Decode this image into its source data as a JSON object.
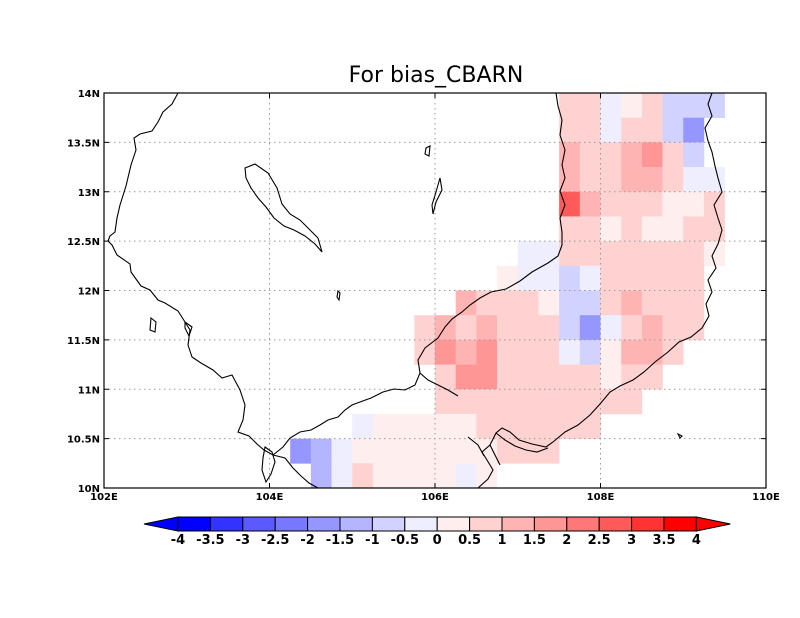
{
  "map": {
    "title": "For bias_CBARN",
    "lon_range": [
      102,
      110
    ],
    "lat_range": [
      10,
      14
    ],
    "x_ticks": [
      {
        "value": 102,
        "label": "102E"
      },
      {
        "value": 104,
        "label": "104E"
      },
      {
        "value": 106,
        "label": "106E"
      },
      {
        "value": 108,
        "label": "108E"
      },
      {
        "value": 110,
        "label": "110E"
      }
    ],
    "y_ticks": [
      {
        "value": 10,
        "label": "10N"
      },
      {
        "value": 10.5,
        "label": "10.5N"
      },
      {
        "value": 11,
        "label": "11N"
      },
      {
        "value": 11.5,
        "label": "11.5N"
      },
      {
        "value": 12,
        "label": "12N"
      },
      {
        "value": 12.5,
        "label": "12.5N"
      },
      {
        "value": 13,
        "label": "13N"
      },
      {
        "value": 13.5,
        "label": "13.5N"
      },
      {
        "value": 14,
        "label": "14N"
      }
    ],
    "grid": "dotted at tick values",
    "projection": "lat-lon",
    "cell_size_deg": 0.25
  },
  "colorbar": {
    "orientation": "horizontal",
    "boundaries": [
      "-4",
      "-3.5",
      "-3",
      "-2.5",
      "-2",
      "-1.5",
      "-1",
      "-0.5",
      "0",
      "0.5",
      "1",
      "1.5",
      "2",
      "2.5",
      "3",
      "3.5",
      "4"
    ],
    "colors": [
      "#0000ff",
      "#3333ff",
      "#5a5aff",
      "#7878ff",
      "#9696ff",
      "#b4b4ff",
      "#d2d2ff",
      "#eeeeff",
      "#ffeeee",
      "#ffd2d2",
      "#ffb4b4",
      "#ff9696",
      "#ff7878",
      "#ff5a5a",
      "#ff3333",
      "#ff0000"
    ],
    "extend_low_color": "#0000ff",
    "extend_high_color": "#ff0000"
  },
  "chart_data": {
    "type": "heatmap",
    "title": "For bias_CBARN",
    "xlabel": "",
    "ylabel": "",
    "xlim": [
      102,
      110
    ],
    "ylim": [
      10,
      14
    ],
    "value_note": "approximate bias values per 0.25-degree grid cell (lon, lat are cell lower-left corners)",
    "cells": [
      {
        "lon": 107.5,
        "lat": 13.75,
        "v": 0.7
      },
      {
        "lon": 107.75,
        "lat": 13.75,
        "v": 0.7
      },
      {
        "lon": 108.0,
        "lat": 13.75,
        "v": -0.3
      },
      {
        "lon": 108.25,
        "lat": 13.75,
        "v": 0.3
      },
      {
        "lon": 108.5,
        "lat": 13.75,
        "v": 0.8
      },
      {
        "lon": 108.75,
        "lat": 13.75,
        "v": -0.7
      },
      {
        "lon": 109.0,
        "lat": 13.75,
        "v": -0.7
      },
      {
        "lon": 109.25,
        "lat": 13.75,
        "v": -0.7
      },
      {
        "lon": 107.5,
        "lat": 13.5,
        "v": 0.7
      },
      {
        "lon": 107.75,
        "lat": 13.5,
        "v": 0.7
      },
      {
        "lon": 108.0,
        "lat": 13.5,
        "v": -0.3
      },
      {
        "lon": 108.25,
        "lat": 13.5,
        "v": 0.8
      },
      {
        "lon": 108.5,
        "lat": 13.5,
        "v": 0.8
      },
      {
        "lon": 108.75,
        "lat": 13.5,
        "v": -0.7
      },
      {
        "lon": 109.0,
        "lat": 13.5,
        "v": -1.7
      },
      {
        "lon": 107.5,
        "lat": 13.25,
        "v": 1.3
      },
      {
        "lon": 107.75,
        "lat": 13.25,
        "v": 0.8
      },
      {
        "lon": 108.0,
        "lat": 13.25,
        "v": 0.8
      },
      {
        "lon": 108.25,
        "lat": 13.25,
        "v": 1.3
      },
      {
        "lon": 108.5,
        "lat": 13.25,
        "v": 1.8
      },
      {
        "lon": 108.75,
        "lat": 13.25,
        "v": 0.8
      },
      {
        "lon": 109.0,
        "lat": 13.25,
        "v": -0.7
      },
      {
        "lon": 107.5,
        "lat": 13.0,
        "v": 1.3
      },
      {
        "lon": 107.75,
        "lat": 13.0,
        "v": 0.8
      },
      {
        "lon": 108.0,
        "lat": 13.0,
        "v": 0.8
      },
      {
        "lon": 108.25,
        "lat": 13.0,
        "v": 1.3
      },
      {
        "lon": 108.5,
        "lat": 13.0,
        "v": 1.3
      },
      {
        "lon": 108.75,
        "lat": 13.0,
        "v": 0.8
      },
      {
        "lon": 109.0,
        "lat": 13.0,
        "v": -0.3
      },
      {
        "lon": 109.25,
        "lat": 13.0,
        "v": -0.3
      },
      {
        "lon": 107.5,
        "lat": 12.75,
        "v": 2.8
      },
      {
        "lon": 107.75,
        "lat": 12.75,
        "v": 1.3
      },
      {
        "lon": 108.0,
        "lat": 12.75,
        "v": 0.8
      },
      {
        "lon": 108.25,
        "lat": 12.75,
        "v": 0.8
      },
      {
        "lon": 108.5,
        "lat": 12.75,
        "v": 0.8
      },
      {
        "lon": 108.75,
        "lat": 12.75,
        "v": 0.3
      },
      {
        "lon": 109.0,
        "lat": 12.75,
        "v": 0.3
      },
      {
        "lon": 109.25,
        "lat": 12.75,
        "v": 0.7
      },
      {
        "lon": 107.5,
        "lat": 12.5,
        "v": 0.8
      },
      {
        "lon": 107.75,
        "lat": 12.5,
        "v": 0.8
      },
      {
        "lon": 108.0,
        "lat": 12.5,
        "v": 0.3
      },
      {
        "lon": 108.25,
        "lat": 12.5,
        "v": 0.8
      },
      {
        "lon": 108.5,
        "lat": 12.5,
        "v": 0.3
      },
      {
        "lon": 108.75,
        "lat": 12.5,
        "v": 0.3
      },
      {
        "lon": 109.0,
        "lat": 12.5,
        "v": 0.7
      },
      {
        "lon": 109.25,
        "lat": 12.5,
        "v": 0.7
      },
      {
        "lon": 107.0,
        "lat": 12.25,
        "v": -0.3
      },
      {
        "lon": 107.25,
        "lat": 12.25,
        "v": -0.3
      },
      {
        "lon": 107.5,
        "lat": 12.25,
        "v": 0.7
      },
      {
        "lon": 107.75,
        "lat": 12.25,
        "v": 0.7
      },
      {
        "lon": 108.0,
        "lat": 12.25,
        "v": 0.7
      },
      {
        "lon": 108.25,
        "lat": 12.25,
        "v": 0.7
      },
      {
        "lon": 108.5,
        "lat": 12.25,
        "v": 0.7
      },
      {
        "lon": 108.75,
        "lat": 12.25,
        "v": 0.7
      },
      {
        "lon": 109.0,
        "lat": 12.25,
        "v": 0.7
      },
      {
        "lon": 109.25,
        "lat": 12.25,
        "v": 0.3
      },
      {
        "lon": 106.75,
        "lat": 12.0,
        "v": 0.3
      },
      {
        "lon": 107.0,
        "lat": 12.0,
        "v": -0.3
      },
      {
        "lon": 107.25,
        "lat": 12.0,
        "v": -0.3
      },
      {
        "lon": 107.5,
        "lat": 12.0,
        "v": -0.7
      },
      {
        "lon": 107.75,
        "lat": 12.0,
        "v": -0.3
      },
      {
        "lon": 108.0,
        "lat": 12.0,
        "v": 0.7
      },
      {
        "lon": 108.25,
        "lat": 12.0,
        "v": 0.7
      },
      {
        "lon": 108.5,
        "lat": 12.0,
        "v": 0.7
      },
      {
        "lon": 108.75,
        "lat": 12.0,
        "v": 0.7
      },
      {
        "lon": 109.0,
        "lat": 12.0,
        "v": 0.7
      },
      {
        "lon": 106.25,
        "lat": 11.75,
        "v": 1.3
      },
      {
        "lon": 106.5,
        "lat": 11.75,
        "v": 0.8
      },
      {
        "lon": 106.75,
        "lat": 11.75,
        "v": 0.8
      },
      {
        "lon": 107.0,
        "lat": 11.75,
        "v": 0.8
      },
      {
        "lon": 107.25,
        "lat": 11.75,
        "v": 0.3
      },
      {
        "lon": 107.5,
        "lat": 11.75,
        "v": -0.7
      },
      {
        "lon": 107.75,
        "lat": 11.75,
        "v": -0.7
      },
      {
        "lon": 108.0,
        "lat": 11.75,
        "v": 0.7
      },
      {
        "lon": 108.25,
        "lat": 11.75,
        "v": 1.3
      },
      {
        "lon": 108.5,
        "lat": 11.75,
        "v": 0.8
      },
      {
        "lon": 108.75,
        "lat": 11.75,
        "v": 0.8
      },
      {
        "lon": 109.0,
        "lat": 11.75,
        "v": 0.8
      },
      {
        "lon": 105.75,
        "lat": 11.5,
        "v": 0.8
      },
      {
        "lon": 106.0,
        "lat": 11.5,
        "v": 1.3
      },
      {
        "lon": 106.25,
        "lat": 11.5,
        "v": 0.8
      },
      {
        "lon": 106.5,
        "lat": 11.5,
        "v": 1.3
      },
      {
        "lon": 106.75,
        "lat": 11.5,
        "v": 0.8
      },
      {
        "lon": 107.0,
        "lat": 11.5,
        "v": 0.8
      },
      {
        "lon": 107.25,
        "lat": 11.5,
        "v": 0.8
      },
      {
        "lon": 107.5,
        "lat": 11.5,
        "v": -0.7
      },
      {
        "lon": 107.75,
        "lat": 11.5,
        "v": -1.7
      },
      {
        "lon": 108.0,
        "lat": 11.5,
        "v": -0.3
      },
      {
        "lon": 108.25,
        "lat": 11.5,
        "v": 0.8
      },
      {
        "lon": 108.5,
        "lat": 11.5,
        "v": 1.3
      },
      {
        "lon": 108.75,
        "lat": 11.5,
        "v": 0.8
      },
      {
        "lon": 109.0,
        "lat": 11.5,
        "v": 0.8
      },
      {
        "lon": 105.75,
        "lat": 11.25,
        "v": 0.8
      },
      {
        "lon": 106.0,
        "lat": 11.25,
        "v": 1.8
      },
      {
        "lon": 106.25,
        "lat": 11.25,
        "v": 1.3
      },
      {
        "lon": 106.5,
        "lat": 11.25,
        "v": 1.8
      },
      {
        "lon": 106.75,
        "lat": 11.25,
        "v": 0.8
      },
      {
        "lon": 107.0,
        "lat": 11.25,
        "v": 0.8
      },
      {
        "lon": 107.25,
        "lat": 11.25,
        "v": 0.8
      },
      {
        "lon": 107.5,
        "lat": 11.25,
        "v": -0.3
      },
      {
        "lon": 107.75,
        "lat": 11.25,
        "v": -0.7
      },
      {
        "lon": 108.0,
        "lat": 11.25,
        "v": 0.3
      },
      {
        "lon": 108.25,
        "lat": 11.25,
        "v": 1.3
      },
      {
        "lon": 108.5,
        "lat": 11.25,
        "v": 1.3
      },
      {
        "lon": 108.75,
        "lat": 11.25,
        "v": 0.8
      },
      {
        "lon": 106.0,
        "lat": 11.0,
        "v": 0.8
      },
      {
        "lon": 106.25,
        "lat": 11.0,
        "v": 1.8
      },
      {
        "lon": 106.5,
        "lat": 11.0,
        "v": 1.8
      },
      {
        "lon": 106.75,
        "lat": 11.0,
        "v": 0.7
      },
      {
        "lon": 107.0,
        "lat": 11.0,
        "v": 0.7
      },
      {
        "lon": 107.25,
        "lat": 11.0,
        "v": 0.7
      },
      {
        "lon": 107.5,
        "lat": 11.0,
        "v": 0.7
      },
      {
        "lon": 107.75,
        "lat": 11.0,
        "v": 0.7
      },
      {
        "lon": 108.0,
        "lat": 11.0,
        "v": 0.3
      },
      {
        "lon": 108.25,
        "lat": 11.0,
        "v": 0.8
      },
      {
        "lon": 108.5,
        "lat": 11.0,
        "v": 0.8
      },
      {
        "lon": 106.0,
        "lat": 10.75,
        "v": 0.7
      },
      {
        "lon": 106.25,
        "lat": 10.75,
        "v": 0.7
      },
      {
        "lon": 106.5,
        "lat": 10.75,
        "v": 0.8
      },
      {
        "lon": 106.75,
        "lat": 10.75,
        "v": 0.7
      },
      {
        "lon": 107.0,
        "lat": 10.75,
        "v": 0.7
      },
      {
        "lon": 107.25,
        "lat": 10.75,
        "v": 0.7
      },
      {
        "lon": 107.5,
        "lat": 10.75,
        "v": 0.7
      },
      {
        "lon": 107.75,
        "lat": 10.75,
        "v": 0.7
      },
      {
        "lon": 108.0,
        "lat": 10.75,
        "v": 0.7
      },
      {
        "lon": 108.25,
        "lat": 10.75,
        "v": 0.7
      },
      {
        "lon": 105.0,
        "lat": 10.5,
        "v": -0.3
      },
      {
        "lon": 105.25,
        "lat": 10.5,
        "v": 0.3
      },
      {
        "lon": 105.5,
        "lat": 10.5,
        "v": 0.3
      },
      {
        "lon": 105.75,
        "lat": 10.5,
        "v": 0.3
      },
      {
        "lon": 106.0,
        "lat": 10.5,
        "v": 0.3
      },
      {
        "lon": 106.25,
        "lat": 10.5,
        "v": 0.3
      },
      {
        "lon": 106.5,
        "lat": 10.5,
        "v": 0.7
      },
      {
        "lon": 106.75,
        "lat": 10.5,
        "v": 0.7
      },
      {
        "lon": 107.0,
        "lat": 10.5,
        "v": 0.7
      },
      {
        "lon": 107.25,
        "lat": 10.5,
        "v": 0.7
      },
      {
        "lon": 107.5,
        "lat": 10.5,
        "v": 0.7
      },
      {
        "lon": 107.75,
        "lat": 10.5,
        "v": 0.7
      },
      {
        "lon": 104.25,
        "lat": 10.25,
        "v": -1.7
      },
      {
        "lon": 104.5,
        "lat": 10.25,
        "v": -1.2
      },
      {
        "lon": 104.75,
        "lat": 10.25,
        "v": -0.3
      },
      {
        "lon": 105.0,
        "lat": 10.25,
        "v": 0.3
      },
      {
        "lon": 105.25,
        "lat": 10.25,
        "v": 0.3
      },
      {
        "lon": 105.5,
        "lat": 10.25,
        "v": 0.3
      },
      {
        "lon": 105.75,
        "lat": 10.25,
        "v": 0.3
      },
      {
        "lon": 106.0,
        "lat": 10.25,
        "v": 0.3
      },
      {
        "lon": 106.25,
        "lat": 10.25,
        "v": 0.3
      },
      {
        "lon": 106.5,
        "lat": 10.25,
        "v": 0.3
      },
      {
        "lon": 106.75,
        "lat": 10.25,
        "v": 0.7
      },
      {
        "lon": 107.0,
        "lat": 10.25,
        "v": 0.7
      },
      {
        "lon": 107.25,
        "lat": 10.25,
        "v": 0.7
      },
      {
        "lon": 104.5,
        "lat": 10.0,
        "v": -1.2
      },
      {
        "lon": 104.75,
        "lat": 10.0,
        "v": -0.3
      },
      {
        "lon": 105.0,
        "lat": 10.0,
        "v": 0.7
      },
      {
        "lon": 105.25,
        "lat": 10.0,
        "v": 0.3
      },
      {
        "lon": 105.5,
        "lat": 10.0,
        "v": 0.3
      },
      {
        "lon": 105.75,
        "lat": 10.0,
        "v": 0.3
      },
      {
        "lon": 106.0,
        "lat": 10.0,
        "v": 0.3
      },
      {
        "lon": 106.25,
        "lat": 10.0,
        "v": -0.3
      },
      {
        "lon": 106.5,
        "lat": 10.0,
        "v": 0.3
      }
    ]
  }
}
